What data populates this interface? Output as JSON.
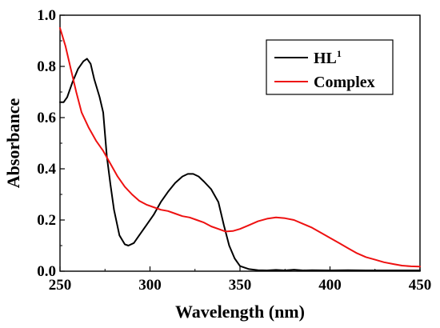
{
  "chart_data": {
    "type": "line",
    "xlabel": "Wavelength (nm)",
    "ylabel": "Absorbance",
    "xlim": [
      250,
      450
    ],
    "ylim": [
      0.0,
      1.0
    ],
    "x_ticks": [
      "250",
      "300",
      "350",
      "400",
      "450"
    ],
    "y_ticks": [
      "0.0",
      "0.2",
      "0.4",
      "0.6",
      "0.8",
      "1.0"
    ],
    "grid": false,
    "legend_position": "top-right",
    "series": [
      {
        "name": "HL1",
        "legend_base": "HL",
        "legend_sup": "1",
        "color": "#000000",
        "points": [
          [
            250,
            0.66
          ],
          [
            252,
            0.66
          ],
          [
            254,
            0.68
          ],
          [
            257,
            0.74
          ],
          [
            260,
            0.79
          ],
          [
            263,
            0.82
          ],
          [
            265,
            0.83
          ],
          [
            267,
            0.81
          ],
          [
            269,
            0.75
          ],
          [
            272,
            0.68
          ],
          [
            274,
            0.62
          ],
          [
            276,
            0.45
          ],
          [
            278,
            0.34
          ],
          [
            280,
            0.24
          ],
          [
            283,
            0.14
          ],
          [
            286,
            0.105
          ],
          [
            288,
            0.1
          ],
          [
            291,
            0.11
          ],
          [
            294,
            0.14
          ],
          [
            298,
            0.18
          ],
          [
            302,
            0.22
          ],
          [
            306,
            0.27
          ],
          [
            310,
            0.31
          ],
          [
            314,
            0.345
          ],
          [
            318,
            0.37
          ],
          [
            321,
            0.38
          ],
          [
            324,
            0.38
          ],
          [
            327,
            0.37
          ],
          [
            330,
            0.35
          ],
          [
            334,
            0.32
          ],
          [
            338,
            0.27
          ],
          [
            341,
            0.18
          ],
          [
            344,
            0.1
          ],
          [
            347,
            0.05
          ],
          [
            350,
            0.02
          ],
          [
            355,
            0.008
          ],
          [
            360,
            0.004
          ],
          [
            365,
            0.003
          ],
          [
            370,
            0.005
          ],
          [
            375,
            0.003
          ],
          [
            380,
            0.006
          ],
          [
            385,
            0.003
          ],
          [
            390,
            0.004
          ],
          [
            400,
            0.003
          ],
          [
            410,
            0.004
          ],
          [
            420,
            0.003
          ],
          [
            430,
            0.003
          ],
          [
            440,
            0.003
          ],
          [
            450,
            0.003
          ]
        ]
      },
      {
        "name": "Complex",
        "legend_base": "Complex",
        "legend_sup": "",
        "color": "#ee1111",
        "points": [
          [
            250,
            0.95
          ],
          [
            253,
            0.88
          ],
          [
            256,
            0.79
          ],
          [
            259,
            0.7
          ],
          [
            262,
            0.62
          ],
          [
            266,
            0.56
          ],
          [
            270,
            0.51
          ],
          [
            274,
            0.47
          ],
          [
            278,
            0.42
          ],
          [
            282,
            0.37
          ],
          [
            286,
            0.33
          ],
          [
            290,
            0.3
          ],
          [
            294,
            0.275
          ],
          [
            298,
            0.26
          ],
          [
            302,
            0.25
          ],
          [
            306,
            0.24
          ],
          [
            310,
            0.235
          ],
          [
            314,
            0.225
          ],
          [
            318,
            0.215
          ],
          [
            322,
            0.21
          ],
          [
            326,
            0.2
          ],
          [
            330,
            0.19
          ],
          [
            334,
            0.175
          ],
          [
            338,
            0.165
          ],
          [
            342,
            0.155
          ],
          [
            346,
            0.157
          ],
          [
            350,
            0.165
          ],
          [
            355,
            0.18
          ],
          [
            360,
            0.195
          ],
          [
            365,
            0.205
          ],
          [
            370,
            0.21
          ],
          [
            375,
            0.207
          ],
          [
            380,
            0.2
          ],
          [
            385,
            0.185
          ],
          [
            390,
            0.17
          ],
          [
            395,
            0.15
          ],
          [
            400,
            0.13
          ],
          [
            405,
            0.11
          ],
          [
            410,
            0.09
          ],
          [
            415,
            0.07
          ],
          [
            420,
            0.055
          ],
          [
            425,
            0.045
          ],
          [
            430,
            0.035
          ],
          [
            435,
            0.028
          ],
          [
            440,
            0.022
          ],
          [
            445,
            0.019
          ],
          [
            450,
            0.018
          ]
        ]
      }
    ]
  }
}
